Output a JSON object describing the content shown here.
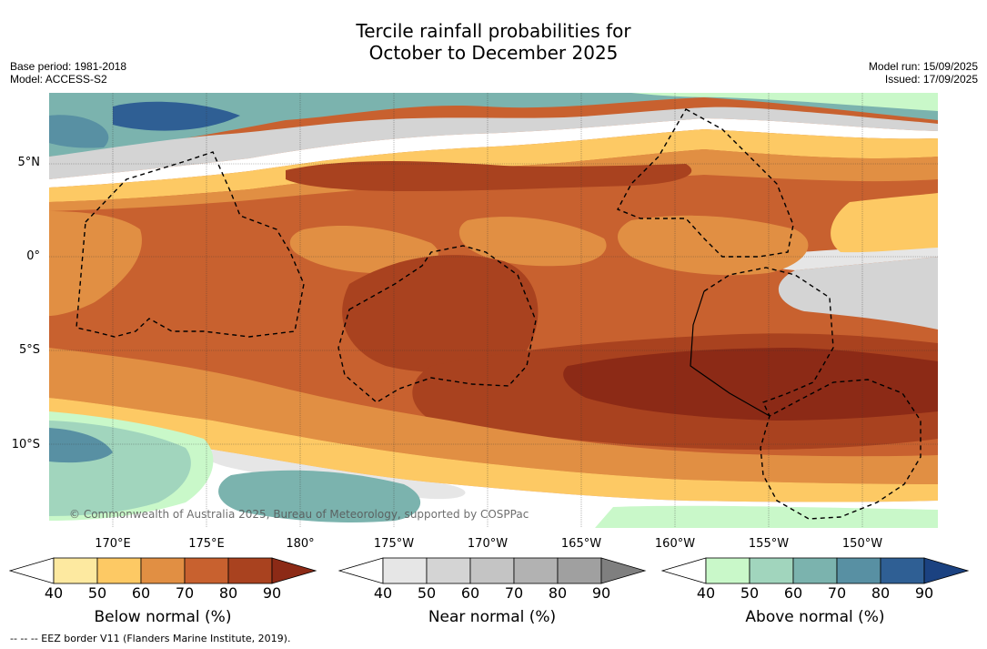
{
  "title_line1": "Tercile rainfall probabilities for",
  "title_line2": "October to December 2025",
  "meta_left": [
    "Base period: 1981-2018",
    "Model: ACCESS-S2"
  ],
  "meta_right": [
    "Model run: 15/09/2025",
    "Issued: 17/09/2025"
  ],
  "lat_labels": [
    "5°N",
    "0°",
    "5°S",
    "10°S"
  ],
  "lon_labels": [
    "170°E",
    "175°E",
    "180°",
    "175°W",
    "170°W",
    "165°W",
    "160°W",
    "155°W",
    "150°W"
  ],
  "copyright": "© Commonwealth of Australia 2025, Bureau of Meteorology, supported by COSPPac",
  "footnote": "--  --  -- EEZ border V11 (Flanders Marine Institute, 2019).",
  "colorbars": [
    {
      "title": "Below normal (%)",
      "ticks": [
        "40",
        "50",
        "60",
        "70",
        "80",
        "90"
      ],
      "colors": [
        "#ffffff",
        "#fde9a0",
        "#fdc964",
        "#e18f43",
        "#c8612f",
        "#a9421f",
        "#8c2a16"
      ]
    },
    {
      "title": "Near normal (%)",
      "ticks": [
        "40",
        "50",
        "60",
        "70",
        "80",
        "90"
      ],
      "colors": [
        "#ffffff",
        "#e6e6e6",
        "#d4d4d4",
        "#c4c4c4",
        "#b2b2b2",
        "#a0a0a0",
        "#7f7f7f"
      ]
    },
    {
      "title": "Above normal (%)",
      "ticks": [
        "40",
        "50",
        "60",
        "70",
        "80",
        "90"
      ],
      "colors": [
        "#ffffff",
        "#c9f8c9",
        "#a1d5bd",
        "#7bb3ae",
        "#5890a3",
        "#2f5f94",
        "#1b4281"
      ]
    }
  ]
}
